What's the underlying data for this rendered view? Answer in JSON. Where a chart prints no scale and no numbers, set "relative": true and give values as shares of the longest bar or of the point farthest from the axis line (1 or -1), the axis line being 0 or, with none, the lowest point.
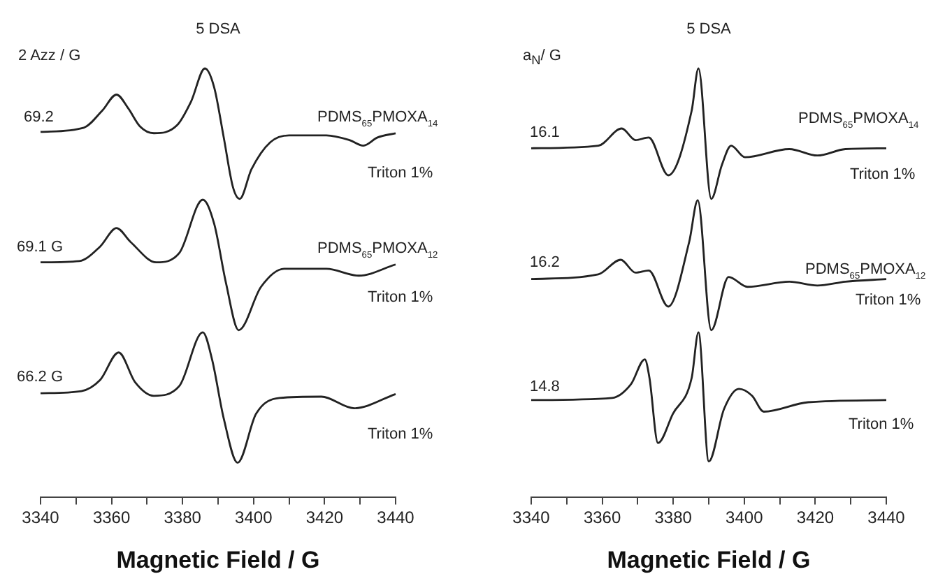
{
  "chart_data": [
    {
      "type": "line",
      "title": "5 DSA",
      "xlabel": "Magnetic Field / G",
      "relative": true,
      "legend": false,
      "grid": false,
      "marker": "none",
      "line_style": "solid",
      "xlim": [
        3340,
        3440
      ],
      "xticks": [
        3340,
        {
          "value": 3350,
          "label": null
        },
        3360,
        {
          "value": 3370,
          "label": null
        },
        3380,
        {
          "value": 3390,
          "label": null
        },
        3400,
        {
          "value": 3410,
          "label": null
        },
        3420,
        {
          "value": 3430,
          "label": null
        },
        3440
      ],
      "series": [
        {
          "color": "#222222",
          "x": [
            3340,
            3352.2,
            3357.4,
            3361.4,
            3364.7,
            3368,
            3371.9,
            3378.5,
            3382.4,
            3386.3,
            3388.9,
            3391.6,
            3394.2,
            3396.1,
            3399.4,
            3404.7,
            3410,
            3420.5,
            3427,
            3430.9,
            3434.9,
            3440
          ],
          "values": [
            0.852,
            0.862,
            0.902,
            0.939,
            0.907,
            0.865,
            0.849,
            0.868,
            0.923,
            1.0,
            0.956,
            0.839,
            0.723,
            0.696,
            0.765,
            0.828,
            0.844,
            0.844,
            0.833,
            0.82,
            0.839,
            0.849
          ]
        },
        {
          "color": "#222222",
          "x": [
            3340,
            3350.9,
            3356.8,
            3361.4,
            3365.3,
            3372.6,
            3379.1,
            3385.7,
            3388.9,
            3392.2,
            3395.8,
            3402.1,
            3408.6,
            3420.5,
            3429.6,
            3440
          ],
          "values": [
            0.548,
            0.551,
            0.585,
            0.628,
            0.596,
            0.548,
            0.57,
            0.694,
            0.638,
            0.501,
            0.39,
            0.491,
            0.533,
            0.533,
            0.517,
            0.543
          ]
        },
        {
          "color": "#222222",
          "x": [
            3340,
            3351.5,
            3356.8,
            3362,
            3366.6,
            3371.9,
            3379.1,
            3385.7,
            3388.3,
            3391.6,
            3395.5,
            3400.7,
            3407.3,
            3419.1,
            3428.3,
            3440
          ],
          "values": [
            0.243,
            0.248,
            0.274,
            0.338,
            0.269,
            0.237,
            0.26,
            0.385,
            0.322,
            0.184,
            0.081,
            0.195,
            0.232,
            0.235,
            0.208,
            0.241
          ]
        }
      ],
      "annotations": [
        "2 Azz / G",
        "69.2",
        "69.1 G",
        "66.2 G",
        "PDMS$_{65}$PMOXA$_{14}$",
        "Triton 1%",
        "PDMS$_{65}$PMOXA$_{12}$",
        "Triton 1%",
        "Triton 1%"
      ]
    },
    {
      "type": "line",
      "title": "5 DSA",
      "xlabel": "Magnetic Field / G",
      "relative": true,
      "legend": false,
      "grid": false,
      "marker": "none",
      "line_style": "solid",
      "xlim": [
        3340,
        3440
      ],
      "xticks": [
        3340,
        {
          "value": 3350,
          "label": null
        },
        3360,
        {
          "value": 3370,
          "label": null
        },
        3380,
        {
          "value": 3390,
          "label": null
        },
        3400,
        {
          "value": 3410,
          "label": null
        },
        3420,
        {
          "value": 3430,
          "label": null
        },
        3440
      ],
      "series": [
        {
          "color": "#222222",
          "x": [
            3340,
            3358.9,
            3365.5,
            3369.4,
            3373.1,
            3378.6,
            3385.2,
            3387.1,
            3390.7,
            3393.7,
            3396.3,
            3400.2,
            3412.7,
            3420.6,
            3428.5,
            3440
          ],
          "values": [
            0.814,
            0.82,
            0.86,
            0.833,
            0.839,
            0.751,
            0.902,
            1.0,
            0.696,
            0.775,
            0.82,
            0.793,
            0.812,
            0.797,
            0.812,
            0.814
          ]
        },
        {
          "color": "#222222",
          "x": [
            3340,
            3358.9,
            3365.2,
            3369.4,
            3373.1,
            3378.6,
            3384.5,
            3386.9,
            3390.7,
            3395.6,
            3400.9,
            3412.7,
            3420.6,
            3428.5,
            3440
          ],
          "values": [
            0.509,
            0.52,
            0.554,
            0.524,
            0.529,
            0.445,
            0.596,
            0.693,
            0.39,
            0.514,
            0.491,
            0.503,
            0.494,
            0.503,
            0.509
          ]
        },
        {
          "color": "#222222",
          "x": [
            3340,
            3362.8,
            3368.1,
            3372,
            3373.3,
            3375.7,
            3379.9,
            3385.2,
            3387.1,
            3390,
            3394.3,
            3398.5,
            3402.2,
            3405.5,
            3418,
            3440
          ],
          "values": [
            0.227,
            0.232,
            0.264,
            0.322,
            0.279,
            0.127,
            0.195,
            0.279,
            0.385,
            0.084,
            0.206,
            0.253,
            0.237,
            0.2,
            0.222,
            0.227
          ]
        }
      ],
      "annotations": [
        "a$_{N}$/ G",
        "16.1",
        "16.2",
        "14.8",
        "PDMS$_{65}$PMOXA$_{14}$",
        "Triton 1%",
        "PDMS$_{65}$PMOXA$_{12}$",
        "Triton 1%",
        "Triton 1%"
      ]
    }
  ]
}
